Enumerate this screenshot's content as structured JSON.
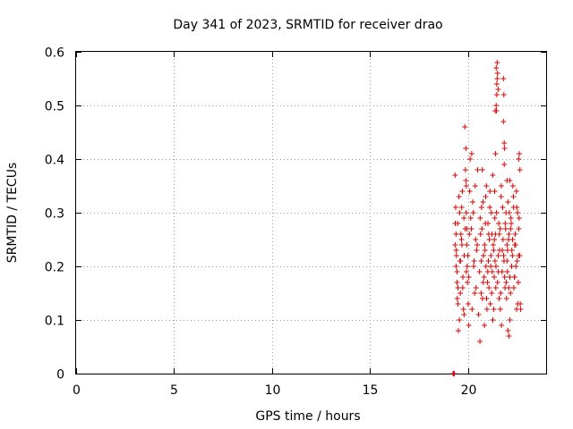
{
  "chart_data": {
    "type": "scatter",
    "title": "Day 341 of 2023, SRMTID for receiver drao",
    "xlabel": "GPS time / hours",
    "ylabel": "SRMTID / TECUs",
    "xlim": [
      0,
      24
    ],
    "ylim": [
      0,
      0.6
    ],
    "xticks": [
      0,
      5,
      10,
      15,
      20
    ],
    "xtick_labels": [
      "0",
      "5",
      "10",
      "15",
      "20"
    ],
    "yticks": [
      0,
      0.1,
      0.2,
      0.3,
      0.4,
      0.5,
      0.6
    ],
    "ytick_labels": [
      "0",
      "0.1",
      "0.2",
      "0.3",
      "0.4",
      "0.5",
      "0.6"
    ],
    "grid": true,
    "marker": "+",
    "color": "#e00000",
    "series": [
      {
        "name": "SRMTID",
        "x": [
          19.25,
          19.27,
          19.29,
          19.31,
          19.35,
          19.38,
          19.4,
          19.42,
          19.45,
          19.48,
          19.5,
          19.55,
          19.6,
          19.65,
          19.7,
          19.75,
          19.8,
          19.85,
          19.9,
          19.95,
          19.35,
          19.4,
          19.45,
          19.5,
          19.58,
          19.62,
          19.68,
          19.72,
          19.78,
          19.82,
          19.88,
          19.92,
          19.97,
          19.36,
          19.41,
          19.46,
          19.52,
          19.57,
          19.63,
          19.69,
          19.74,
          19.81,
          19.87,
          19.93,
          19.9,
          19.92,
          19.95,
          19.98,
          20.0,
          20.02,
          20.05,
          20.08,
          20.1,
          20.15,
          20.2,
          20.25,
          20.3,
          20.35,
          20.4,
          20.45,
          20.5,
          20.05,
          20.12,
          20.18,
          20.22,
          20.28,
          20.32,
          20.38,
          20.42,
          20.48,
          20.55,
          20.6,
          20.65,
          20.7,
          20.75,
          20.8,
          20.85,
          20.9,
          20.95,
          21.0,
          21.05,
          21.1,
          21.15,
          21.2,
          21.25,
          21.3,
          20.62,
          20.68,
          20.72,
          20.78,
          20.83,
          20.88,
          20.93,
          20.98,
          21.03,
          21.08,
          21.13,
          21.18,
          21.23,
          21.28,
          20.63,
          20.69,
          20.74,
          20.79,
          20.86,
          20.91,
          20.96,
          21.02,
          21.07,
          21.12,
          21.17,
          21.22,
          21.27,
          21.32,
          21.35,
          21.38,
          21.4,
          21.42,
          21.45,
          21.48,
          21.5,
          21.55,
          21.6,
          21.65,
          21.7,
          21.75,
          21.8,
          21.85,
          21.9,
          21.95,
          22.0,
          21.33,
          21.37,
          21.41,
          21.44,
          21.52,
          21.58,
          21.62,
          21.68,
          21.72,
          21.78,
          21.83,
          21.88,
          21.93,
          21.98,
          21.36,
          21.39,
          21.43,
          21.47,
          21.56,
          21.61,
          21.66,
          21.71,
          21.76,
          21.82,
          21.86,
          21.91,
          21.96,
          22.0,
          22.05,
          22.1,
          22.15,
          22.2,
          22.25,
          22.3,
          22.35,
          22.4,
          22.45,
          22.5,
          22.55,
          22.6,
          22.65,
          22.02,
          22.08,
          22.12,
          22.18,
          22.22,
          22.28,
          22.33,
          22.38,
          22.42,
          22.48,
          22.52,
          22.58,
          22.62,
          22.03,
          22.09,
          22.14,
          22.19,
          22.24,
          22.29,
          22.34,
          22.39,
          22.44,
          22.49,
          22.54,
          22.59,
          21.45,
          21.46,
          21.48,
          21.5,
          21.52,
          21.55,
          21.82,
          21.84,
          21.86,
          21.88,
          22.0,
          22.05,
          22.1,
          22.15,
          22.6,
          22.63,
          22.66,
          22.68,
          22.7
        ],
        "y": [
          0.0,
          0.0,
          0.0,
          0.0,
          0.37,
          0.31,
          0.26,
          0.22,
          0.19,
          0.28,
          0.16,
          0.33,
          0.21,
          0.26,
          0.24,
          0.18,
          0.29,
          0.46,
          0.42,
          0.27,
          0.24,
          0.2,
          0.17,
          0.13,
          0.3,
          0.15,
          0.25,
          0.34,
          0.12,
          0.22,
          0.38,
          0.35,
          0.2,
          0.28,
          0.23,
          0.14,
          0.08,
          0.1,
          0.21,
          0.31,
          0.16,
          0.11,
          0.27,
          0.19,
          0.36,
          0.3,
          0.24,
          0.17,
          0.22,
          0.13,
          0.09,
          0.26,
          0.34,
          0.29,
          0.41,
          0.32,
          0.2,
          0.15,
          0.25,
          0.23,
          0.38,
          0.18,
          0.4,
          0.27,
          0.12,
          0.3,
          0.21,
          0.35,
          0.16,
          0.24,
          0.11,
          0.19,
          0.26,
          0.31,
          0.14,
          0.22,
          0.09,
          0.28,
          0.35,
          0.17,
          0.21,
          0.25,
          0.13,
          0.3,
          0.19,
          0.24,
          0.06,
          0.15,
          0.27,
          0.32,
          0.18,
          0.23,
          0.2,
          0.12,
          0.28,
          0.16,
          0.34,
          0.22,
          0.26,
          0.1,
          0.29,
          0.21,
          0.38,
          0.17,
          0.24,
          0.33,
          0.14,
          0.19,
          0.26,
          0.31,
          0.2,
          0.15,
          0.37,
          0.23,
          0.18,
          0.29,
          0.49,
          0.41,
          0.57,
          0.54,
          0.58,
          0.22,
          0.14,
          0.27,
          0.33,
          0.19,
          0.25,
          0.21,
          0.16,
          0.3,
          0.24,
          0.12,
          0.34,
          0.26,
          0.2,
          0.17,
          0.28,
          0.23,
          0.15,
          0.09,
          0.31,
          0.22,
          0.18,
          0.27,
          0.14,
          0.25,
          0.21,
          0.16,
          0.3,
          0.19,
          0.26,
          0.12,
          0.35,
          0.23,
          0.47,
          0.39,
          0.28,
          0.17,
          0.21,
          0.32,
          0.26,
          0.18,
          0.29,
          0.23,
          0.35,
          0.16,
          0.24,
          0.2,
          0.31,
          0.13,
          0.27,
          0.22,
          0.19,
          0.25,
          0.3,
          0.15,
          0.28,
          0.22,
          0.33,
          0.18,
          0.26,
          0.34,
          0.21,
          0.17,
          0.29,
          0.23,
          0.16,
          0.36,
          0.27,
          0.2,
          0.25,
          0.31,
          0.18,
          0.24,
          0.12,
          0.3,
          0.22,
          0.5,
          0.49,
          0.52,
          0.55,
          0.56,
          0.53,
          0.55,
          0.52,
          0.43,
          0.42,
          0.36,
          0.08,
          0.07,
          0.1,
          0.4,
          0.41,
          0.38,
          0.13,
          0.12
        ]
      }
    ]
  }
}
